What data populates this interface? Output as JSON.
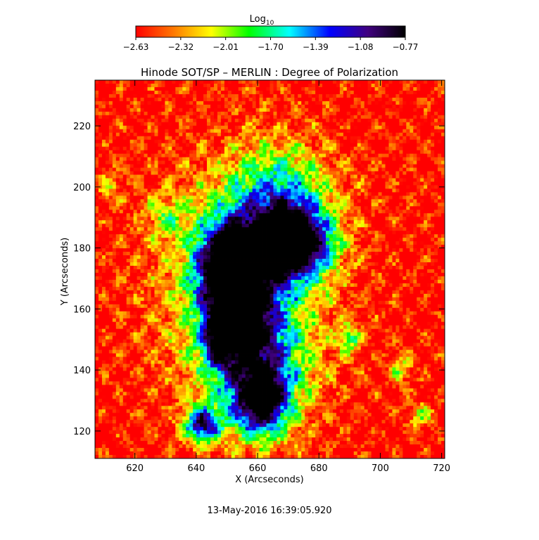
{
  "chart_data": {
    "type": "heatmap",
    "title": "Hinode SOT/SP – MERLIN : Degree of Polarization",
    "xlabel": "X (Arcseconds)",
    "ylabel": "Y (Arcseconds)",
    "xlim": [
      607,
      721
    ],
    "ylim": [
      111,
      235
    ],
    "xticks": [
      620,
      640,
      660,
      680,
      700,
      720
    ],
    "yticks": [
      120,
      140,
      160,
      180,
      200,
      220
    ],
    "colorbar": {
      "title_main": "Log",
      "title_sub": "10",
      "ticks": [
        "−2.63",
        "−2.32",
        "−2.01",
        "−1.70",
        "−1.39",
        "−1.08",
        "−0.77"
      ],
      "range": [
        -2.63,
        -0.77
      ],
      "colormap": [
        "#ff0000",
        "#ff7800",
        "#ffff00",
        "#00ff00",
        "#00ffff",
        "#0000ff",
        "#400080",
        "#000000"
      ]
    },
    "features": [
      {
        "x": 651,
        "y": 174,
        "value": -0.85
      },
      {
        "x": 671,
        "y": 181,
        "value": -0.8
      },
      {
        "x": 655,
        "y": 158,
        "value": -1.1
      },
      {
        "x": 661,
        "y": 130,
        "value": -1.2
      },
      {
        "x": 642,
        "y": 122,
        "value": -1.15
      }
    ]
  },
  "footer": {
    "timestamp": "13-May-2016 16:39:05.920"
  }
}
